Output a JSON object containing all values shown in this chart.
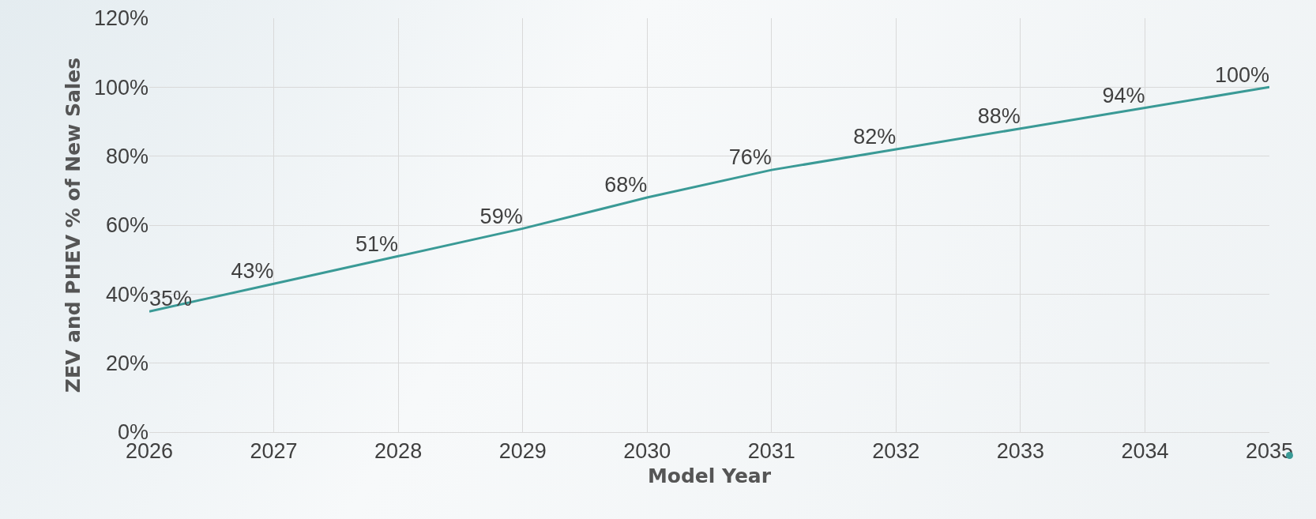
{
  "chart_data": {
    "type": "line",
    "xlabel": "Model Year",
    "ylabel": "ZEV and PHEV % of New Sales",
    "categories": [
      "2026",
      "2027",
      "2028",
      "2029",
      "2030",
      "2031",
      "2032",
      "2033",
      "2034",
      "2035"
    ],
    "series": [
      {
        "color": "#3a9a96",
        "values": [
          35,
          43,
          51,
          59,
          68,
          76,
          82,
          88,
          94,
          100
        ],
        "value_labels": [
          "35%",
          "43%",
          "51%",
          "59%",
          "68%",
          "76%",
          "82%",
          "88%",
          "94%",
          "100%"
        ]
      }
    ],
    "ylim": [
      0,
      120
    ],
    "yticks": [
      {
        "value": 0,
        "label": "0%"
      },
      {
        "value": 20,
        "label": "20%"
      },
      {
        "value": 40,
        "label": "40%"
      },
      {
        "value": 60,
        "label": "60%"
      },
      {
        "value": 80,
        "label": "80%"
      },
      {
        "value": 100,
        "label": "100%"
      },
      {
        "value": 120,
        "label": "120%"
      }
    ],
    "grid": true,
    "marker": "none",
    "line_style": "solid"
  }
}
